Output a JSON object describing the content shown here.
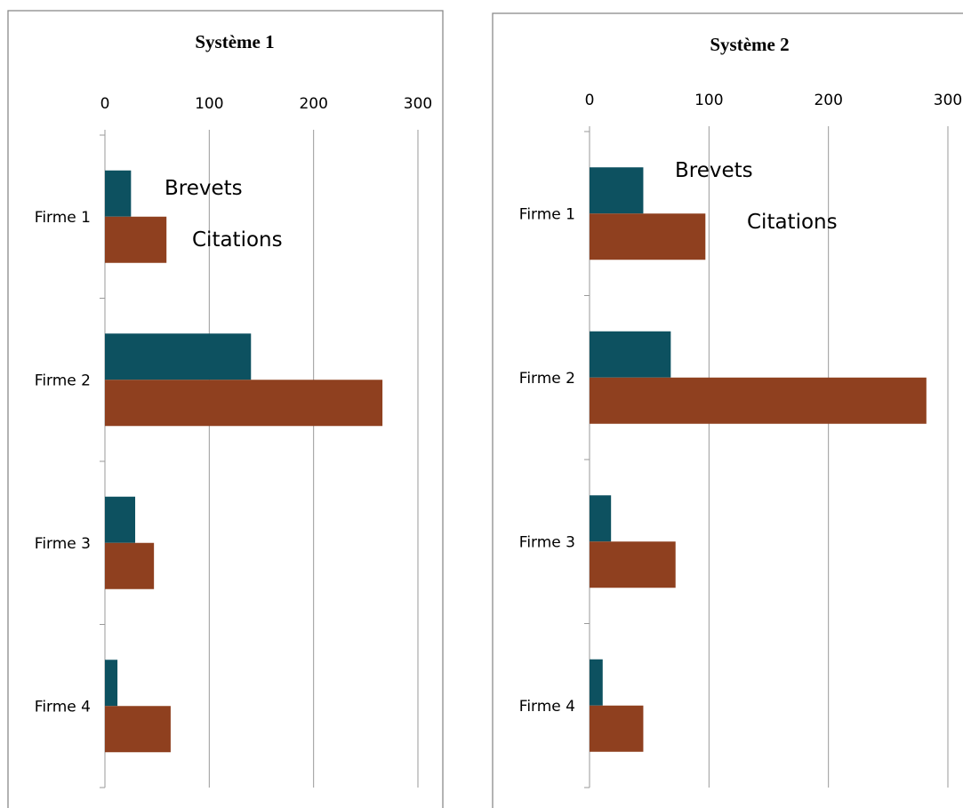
{
  "chart_data": [
    {
      "type": "bar",
      "orientation": "horizontal",
      "title": "Système 1",
      "categories": [
        "Firme 1",
        "Firme 2",
        "Firme 3",
        "Firme 4"
      ],
      "series": [
        {
          "name": "Brevets",
          "values": [
            25,
            140,
            29,
            12
          ],
          "color": "#0d5160"
        },
        {
          "name": "Citations",
          "values": [
            59,
            266,
            47,
            63
          ],
          "color": "#8f401f"
        }
      ],
      "xticks": [
        "0",
        "100",
        "200",
        "300"
      ],
      "xlim": [
        0,
        300
      ],
      "grid": true,
      "legend": "inline labels near Firme 1 bars"
    },
    {
      "type": "bar",
      "orientation": "horizontal",
      "title": "Système 2",
      "categories": [
        "Firme 1",
        "Firme 2",
        "Firme 3",
        "Firme 4"
      ],
      "series": [
        {
          "name": "Brevets",
          "values": [
            45,
            68,
            18,
            11
          ],
          "color": "#0d5160"
        },
        {
          "name": "Citations",
          "values": [
            97,
            282,
            72,
            45
          ],
          "color": "#8f401f"
        }
      ],
      "xticks": [
        "0",
        "100",
        "200",
        "300"
      ],
      "xlim": [
        0,
        300
      ],
      "grid": true,
      "legend": "inline labels near Firme 1 bars"
    }
  ]
}
